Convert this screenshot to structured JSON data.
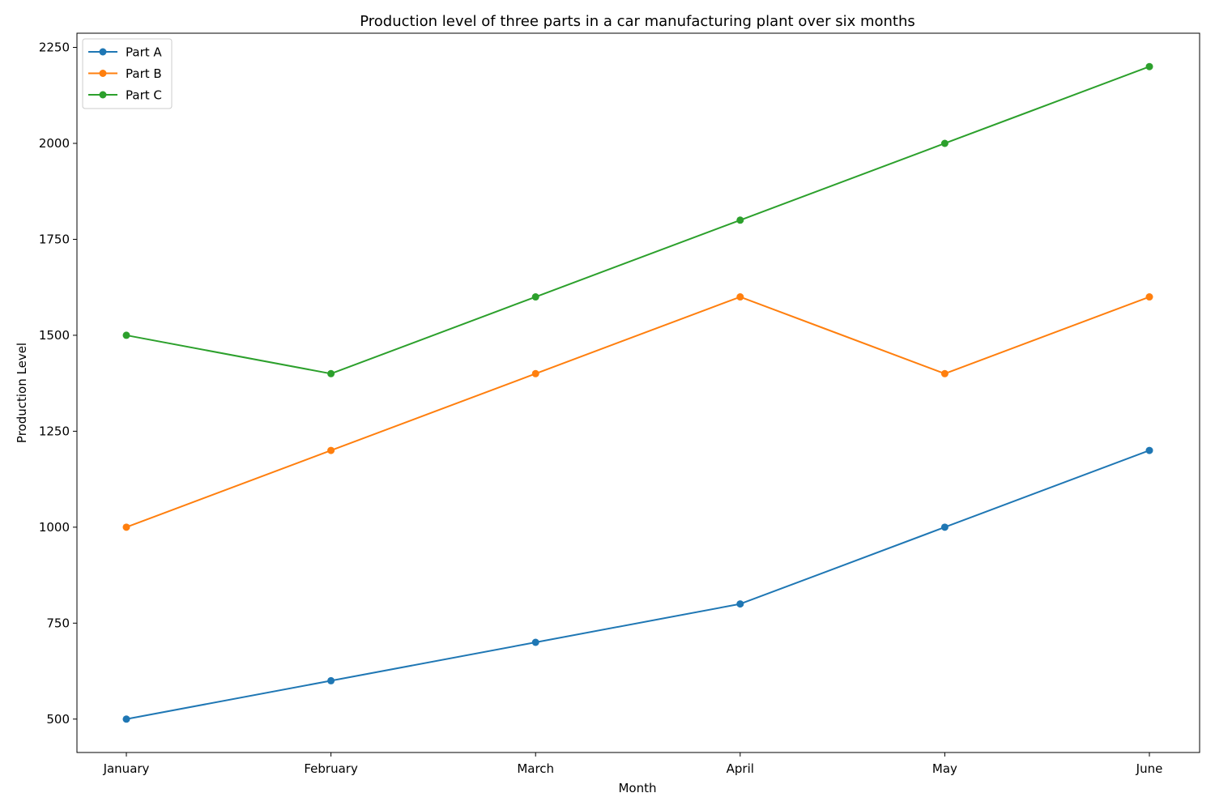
{
  "chart_data": {
    "type": "line",
    "title": "Production level of three parts in a car manufacturing plant over six months",
    "xlabel": "Month",
    "ylabel": "Production Level",
    "categories": [
      "January",
      "February",
      "March",
      "April",
      "May",
      "June"
    ],
    "yticks": [
      500,
      750,
      1000,
      1250,
      1500,
      1750,
      2000,
      2250
    ],
    "ylim": [
      413,
      2287
    ],
    "grid": false,
    "legend_position": "top-left",
    "marker": "circle",
    "series": [
      {
        "name": "Part A",
        "color": "#1f77b4",
        "values": [
          500,
          600,
          700,
          800,
          1000,
          1200
        ]
      },
      {
        "name": "Part B",
        "color": "#ff7f0e",
        "values": [
          1000,
          1200,
          1400,
          1600,
          1400,
          1600
        ]
      },
      {
        "name": "Part C",
        "color": "#2ca02c",
        "values": [
          1500,
          1400,
          1600,
          1800,
          2000,
          2200
        ]
      }
    ]
  }
}
